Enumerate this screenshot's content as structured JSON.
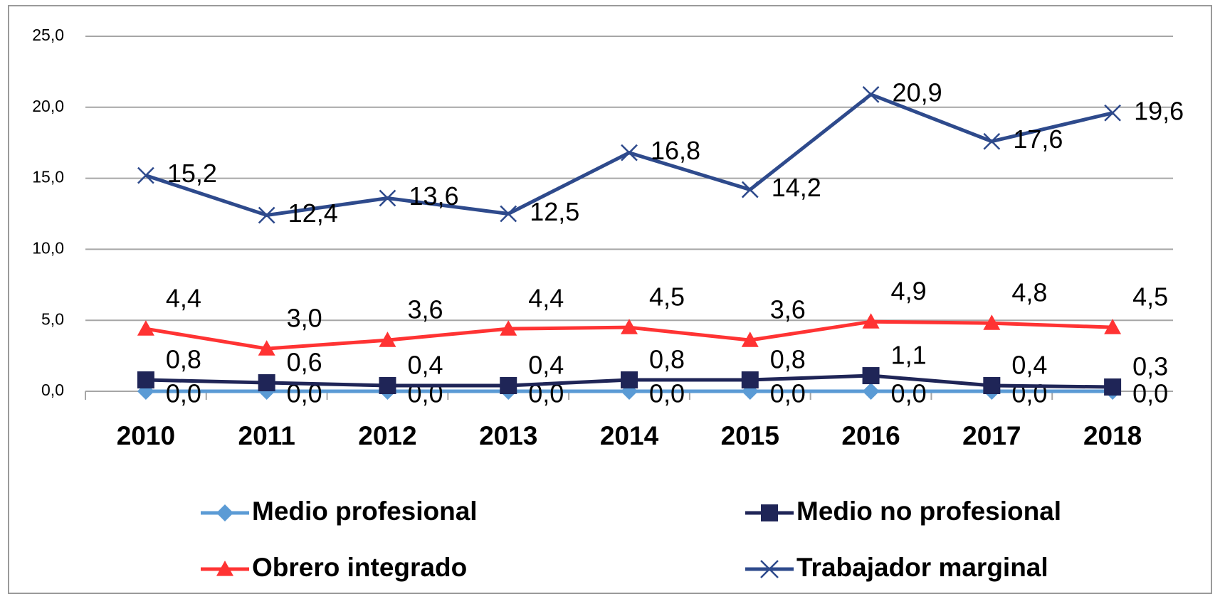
{
  "chart_data": {
    "type": "line",
    "categories": [
      "2010",
      "2011",
      "2012",
      "2013",
      "2014",
      "2015",
      "2016",
      "2017",
      "2018"
    ],
    "series": [
      {
        "name": "Medio profesional",
        "color": "#5b9bd5",
        "marker": "diamond",
        "values": [
          0,
          0,
          0,
          0,
          0,
          0,
          0,
          0,
          0
        ],
        "value_labels": [
          "0,0",
          "0,0",
          "0,0",
          "0,0",
          "0,0",
          "0,0",
          "0,0",
          "0,0",
          "0,0"
        ]
      },
      {
        "name": "Medio no profesional",
        "color": "#1f2557",
        "marker": "square",
        "values": [
          0.8,
          0.6,
          0.4,
          0.4,
          0.8,
          0.8,
          1.1,
          0.4,
          0.3
        ],
        "value_labels": [
          "0,8",
          "0,6",
          "0,4",
          "0,4",
          "0,8",
          "0,8",
          "1,1",
          "0,4",
          "0,3"
        ]
      },
      {
        "name": "Obrero integrado",
        "color": "#ff3333",
        "marker": "triangle",
        "values": [
          4.4,
          3.0,
          3.6,
          4.4,
          4.5,
          3.6,
          4.9,
          4.8,
          4.5
        ],
        "value_labels": [
          "4,4",
          "3,0",
          "3,6",
          "4,4",
          "4,5",
          "3,6",
          "4,9",
          "4,8",
          "4,5"
        ]
      },
      {
        "name": "Trabajador marginal",
        "color": "#2e4a8c",
        "marker": "x",
        "values": [
          15.2,
          12.4,
          13.6,
          12.5,
          16.8,
          14.2,
          20.9,
          17.6,
          19.6
        ],
        "value_labels": [
          "15,2",
          "12,4",
          "13,6",
          "12,5",
          "16,8",
          "14,2",
          "20,9",
          "17,6",
          "19,6"
        ]
      }
    ],
    "ylim": [
      0,
      25
    ],
    "yticks": [
      {
        "value": 0,
        "label": "0,0"
      },
      {
        "value": 5,
        "label": "5,0"
      },
      {
        "value": 10,
        "label": "10,0"
      },
      {
        "value": 15,
        "label": "15,0"
      },
      {
        "value": 20,
        "label": "20,0"
      },
      {
        "value": 25,
        "label": "25,0"
      }
    ],
    "grid": true,
    "legend": "bottom"
  }
}
